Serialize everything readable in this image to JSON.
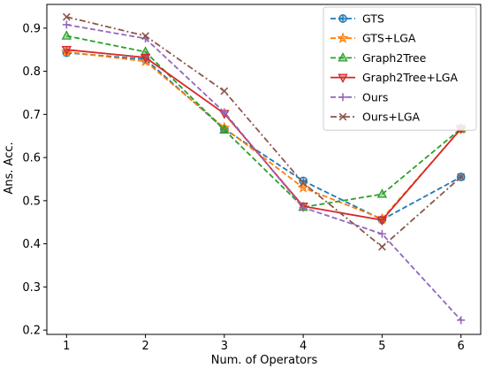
{
  "chart_data": {
    "type": "line",
    "title": "",
    "xlabel": "Num. of Operators",
    "ylabel": "Ans. Acc.",
    "x": [
      1,
      2,
      3,
      4,
      5,
      6
    ],
    "xlim": [
      0.75,
      6.25
    ],
    "ylim": [
      0.19,
      0.955
    ],
    "xticks": [
      1,
      2,
      3,
      4,
      5,
      6
    ],
    "yticks": [
      0.2,
      0.3,
      0.4,
      0.5,
      0.6,
      0.7,
      0.8,
      0.9
    ],
    "grid": false,
    "legend_position": "top-right",
    "series": [
      {
        "name": "GTS",
        "color": "#1f77b4",
        "dash": "dashed",
        "marker": "circle-plus",
        "values": [
          0.843,
          0.828,
          0.666,
          0.546,
          0.456,
          0.555
        ]
      },
      {
        "name": "GTS+LGA",
        "color": "#ff7f0e",
        "dash": "dashed",
        "marker": "star",
        "values": [
          0.845,
          0.823,
          0.669,
          0.53,
          0.458,
          0.666
        ]
      },
      {
        "name": "Graph2Tree",
        "color": "#2ca02c",
        "dash": "dashed",
        "marker": "triangle-up",
        "values": [
          0.882,
          0.845,
          0.664,
          0.485,
          0.515,
          0.667
        ]
      },
      {
        "name": "Graph2Tree+LGA",
        "color": "#d62728",
        "dash": "solid",
        "marker": "triangle-down",
        "values": [
          0.85,
          0.832,
          0.702,
          0.487,
          0.455,
          0.667
        ]
      },
      {
        "name": "Ours",
        "color": "#9467bd",
        "dash": "dashed",
        "marker": "plus",
        "values": [
          0.908,
          0.876,
          0.705,
          0.484,
          0.423,
          0.223
        ]
      },
      {
        "name": "Ours+LGA",
        "color": "#8c564b",
        "dash": "dashdot",
        "marker": "x",
        "values": [
          0.926,
          0.882,
          0.754,
          0.541,
          0.393,
          0.555
        ]
      }
    ]
  }
}
